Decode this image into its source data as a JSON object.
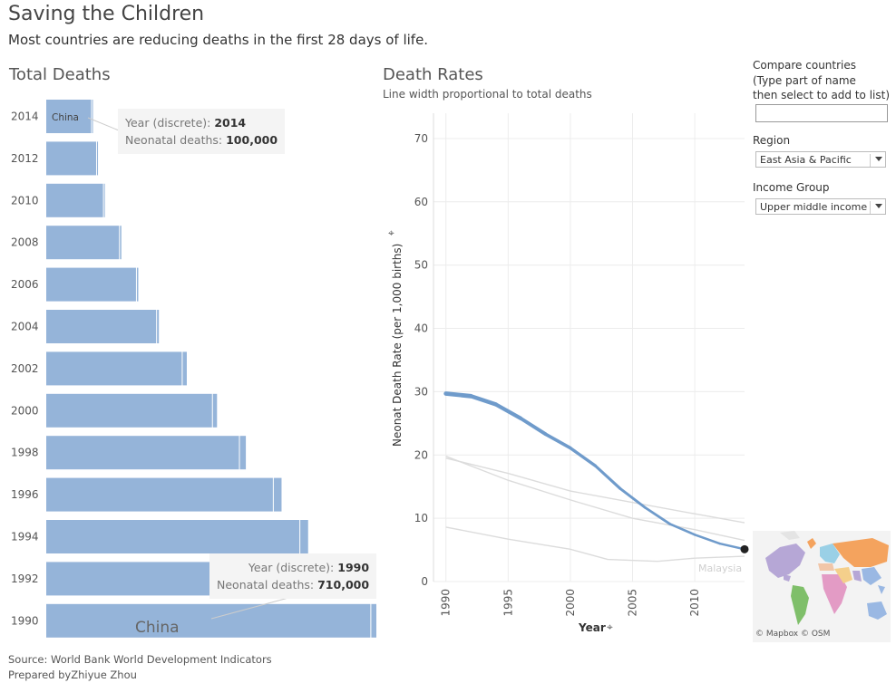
{
  "header": {
    "title": "Saving the Children",
    "subtitle": "Most countries are reducing deaths in the first 28 days of life."
  },
  "left_panel": {
    "title": "Total Deaths",
    "china_label_top": "China",
    "china_label_bottom": "China"
  },
  "tooltips": {
    "top": {
      "year_label": "Year (discrete):",
      "year_value": "2014",
      "deaths_label": "Neonatal deaths:",
      "deaths_value": "100,000"
    },
    "bottom": {
      "year_label": "Year (discrete):",
      "year_value": "1990",
      "deaths_label": "Neonatal deaths:",
      "deaths_value": "710,000"
    }
  },
  "right_panel": {
    "title": "Death Rates",
    "subtitle": "Line width proportional to total deaths",
    "ylabel": "Neonat Death Rate (per 1,000 births)",
    "xlabel": "Year",
    "end_label": "Malaysia",
    "map_attribution": "© Mapbox © OSM"
  },
  "controls": {
    "compare_label_line1": "Compare countries",
    "compare_label_line2": "(Type  part of name",
    "compare_label_line3": "then select to add to list)",
    "compare_value": "",
    "region_label": "Region",
    "region_value": "East Asia & Pacific",
    "income_label": "Income Group",
    "income_value": "Upper middle income"
  },
  "footer": {
    "source": "Source: World Bank World Development Indicators",
    "prepared": "Prepared byZhiyue Zhou"
  },
  "colors": {
    "bar": "#95b4d9",
    "line_main": "#6f9bcb",
    "line_other": "#dcdcdc",
    "grid": "#ececec"
  },
  "chart_data": [
    {
      "type": "bar",
      "title": "Total Deaths",
      "categories": [
        "2014",
        "2012",
        "2010",
        "2008",
        "2006",
        "2004",
        "2002",
        "2000",
        "1998",
        "1996",
        "1994",
        "1992",
        "1990"
      ],
      "series": [
        {
          "name": "China",
          "values": [
            100000,
            111000,
            126000,
            161000,
            198000,
            242000,
            298000,
            364000,
            423000,
            497000,
            555000,
            620000,
            710000
          ]
        },
        {
          "values": [
            4000,
            4000,
            4000,
            5000,
            5000,
            6000,
            11000,
            11000,
            15000,
            19000,
            19000,
            21000,
            23000
          ]
        }
      ],
      "xlim": [
        0,
        733000
      ]
    },
    {
      "type": "line",
      "title": "Death Rates",
      "subtitle": "Line width proportional to total deaths",
      "xlabel": "Year",
      "ylabel": "Neonat Death Rate (per 1,000 births)",
      "xlim": [
        1989,
        2014
      ],
      "ylim": [
        0,
        74
      ],
      "xticks": [
        1990,
        1995,
        2000,
        2005,
        2010
      ],
      "yticks": [
        0,
        10,
        20,
        30,
        40,
        50,
        60,
        70
      ],
      "series": [
        {
          "name": "China",
          "x": [
            1990,
            1992,
            1994,
            1996,
            1998,
            2000,
            2002,
            2004,
            2006,
            2008,
            2010,
            2012,
            2014
          ],
          "y": [
            29.7,
            29.3,
            28.0,
            25.8,
            23.3,
            21.1,
            18.3,
            14.7,
            11.7,
            9.1,
            7.4,
            6.0,
            5.1
          ],
          "weight": [
            710000,
            620000,
            555000,
            497000,
            423000,
            364000,
            298000,
            242000,
            198000,
            161000,
            126000,
            111000,
            100000
          ]
        },
        {
          "x": [
            1990,
            1995,
            2000,
            2005,
            2010,
            2014
          ],
          "y": [
            19.8,
            16.0,
            12.9,
            10.0,
            8.2,
            6.5
          ]
        },
        {
          "x": [
            1990,
            1995,
            2000,
            2005,
            2010,
            2014
          ],
          "y": [
            19.5,
            17.1,
            14.3,
            12.5,
            10.7,
            9.3
          ]
        },
        {
          "x": [
            1990,
            1995,
            2000,
            2003,
            2007,
            2010,
            2014
          ],
          "y": [
            8.6,
            6.7,
            5.1,
            3.5,
            3.2,
            3.7,
            4.0
          ]
        }
      ]
    }
  ]
}
